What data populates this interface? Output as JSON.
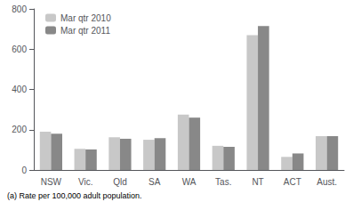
{
  "chart_data": {
    "type": "bar",
    "categories": [
      "NSW",
      "Vic.",
      "Qld",
      "SA",
      "WA",
      "Tas.",
      "NT",
      "ACT",
      "Aust."
    ],
    "series": [
      {
        "name": "Mar qtr 2010",
        "color": "#c8c8c8",
        "values": [
          190,
          105,
          162,
          150,
          275,
          120,
          670,
          65,
          168
        ]
      },
      {
        "name": "Mar qtr 2011",
        "color": "#888888",
        "values": [
          180,
          102,
          155,
          158,
          260,
          115,
          715,
          82,
          168
        ]
      }
    ],
    "ylim": [
      0,
      800
    ],
    "yticks": [
      0,
      200,
      400,
      600,
      800
    ],
    "grid": false,
    "legend": "upper left",
    "annotations": [
      "(a) Rate per 100,000 adult population."
    ]
  }
}
